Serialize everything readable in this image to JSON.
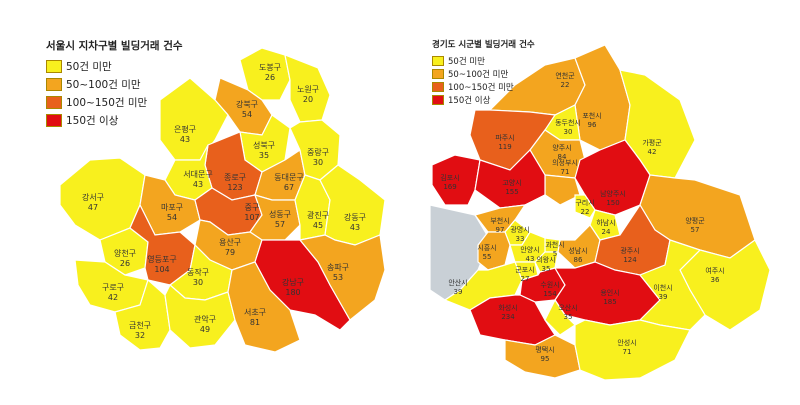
{
  "colors": {
    "under_50": "#f8f01e",
    "50_100": "#f3a51f",
    "100_150": "#e8601c",
    "150_plus": "#e10d12",
    "border": "#ffffff",
    "water": "#c9d0d6"
  },
  "seoul": {
    "legend": {
      "title": "서울시 지차구별 빌딩거래 건수",
      "items": [
        {
          "label": "50건 미만",
          "class": "under_50"
        },
        {
          "label": "50~100건 미만",
          "class": "50_100"
        },
        {
          "label": "100~150건 미만",
          "class": "100_150"
        },
        {
          "label": "150건 이상",
          "class": "150_plus"
        }
      ]
    },
    "districts": [
      {
        "name": "도봉구",
        "value": "26"
      },
      {
        "name": "노원구",
        "value": "20"
      },
      {
        "name": "강북구",
        "value": "54"
      },
      {
        "name": "은평구",
        "value": "43"
      },
      {
        "name": "성북구",
        "value": "35"
      },
      {
        "name": "종로구",
        "value": "123"
      },
      {
        "name": "동대문구",
        "value": "67"
      },
      {
        "name": "중랑구",
        "value": "30"
      },
      {
        "name": "서대문구",
        "value": "43"
      },
      {
        "name": "강서구",
        "value": "47"
      },
      {
        "name": "마포구",
        "value": "54"
      },
      {
        "name": "중구",
        "value": "107"
      },
      {
        "name": "성동구",
        "value": "57"
      },
      {
        "name": "광진구",
        "value": "45"
      },
      {
        "name": "강동구",
        "value": "43"
      },
      {
        "name": "용산구",
        "value": "79"
      },
      {
        "name": "양천구",
        "value": "26"
      },
      {
        "name": "영등포구",
        "value": "104"
      },
      {
        "name": "구로구",
        "value": "42"
      },
      {
        "name": "동작구",
        "value": "30"
      },
      {
        "name": "강남구",
        "value": "180"
      },
      {
        "name": "송파구",
        "value": "53"
      },
      {
        "name": "금천구",
        "value": "32"
      },
      {
        "name": "관악구",
        "value": "49"
      },
      {
        "name": "서초구",
        "value": "81"
      }
    ]
  },
  "gyeonggi": {
    "legend": {
      "title": "경기도 시군별 빌딩거래 건수",
      "items": [
        {
          "label": "50건 미만",
          "class": "under_50"
        },
        {
          "label": "50~100건 미만",
          "class": "50_100"
        },
        {
          "label": "100~150건 미만",
          "class": "100_150"
        },
        {
          "label": "150건 이상",
          "class": "150_plus"
        }
      ]
    },
    "regions": [
      {
        "name": "연천군",
        "value": "22"
      },
      {
        "name": "포천시",
        "value": "96"
      },
      {
        "name": "동두천시",
        "value": "30"
      },
      {
        "name": "파주시",
        "value": "119"
      },
      {
        "name": "양주시",
        "value": "84"
      },
      {
        "name": "가평군",
        "value": "42"
      },
      {
        "name": "의정부시",
        "value": "71"
      },
      {
        "name": "김포시",
        "value": "169"
      },
      {
        "name": "고양시",
        "value": "155"
      },
      {
        "name": "남양주시",
        "value": "150"
      },
      {
        "name": "구리시",
        "value": "22"
      },
      {
        "name": "하남시",
        "value": "24"
      },
      {
        "name": "양평군",
        "value": "57"
      },
      {
        "name": "부천시",
        "value": "97"
      },
      {
        "name": "광명시",
        "value": "33"
      },
      {
        "name": "과천시",
        "value": "5"
      },
      {
        "name": "시흥시",
        "value": "55"
      },
      {
        "name": "안양시",
        "value": "43"
      },
      {
        "name": "성남시",
        "value": "86"
      },
      {
        "name": "광주시",
        "value": "124"
      },
      {
        "name": "군포시",
        "value": "27"
      },
      {
        "name": "의왕시",
        "value": "35"
      },
      {
        "name": "안산시",
        "value": "39"
      },
      {
        "name": "수원시",
        "value": "154"
      },
      {
        "name": "용인시",
        "value": "185"
      },
      {
        "name": "여주시",
        "value": "36"
      },
      {
        "name": "이천시",
        "value": "39"
      },
      {
        "name": "화성시",
        "value": "234"
      },
      {
        "name": "오산시",
        "value": "35"
      },
      {
        "name": "평택시",
        "value": "95"
      },
      {
        "name": "안성시",
        "value": "71"
      }
    ]
  }
}
